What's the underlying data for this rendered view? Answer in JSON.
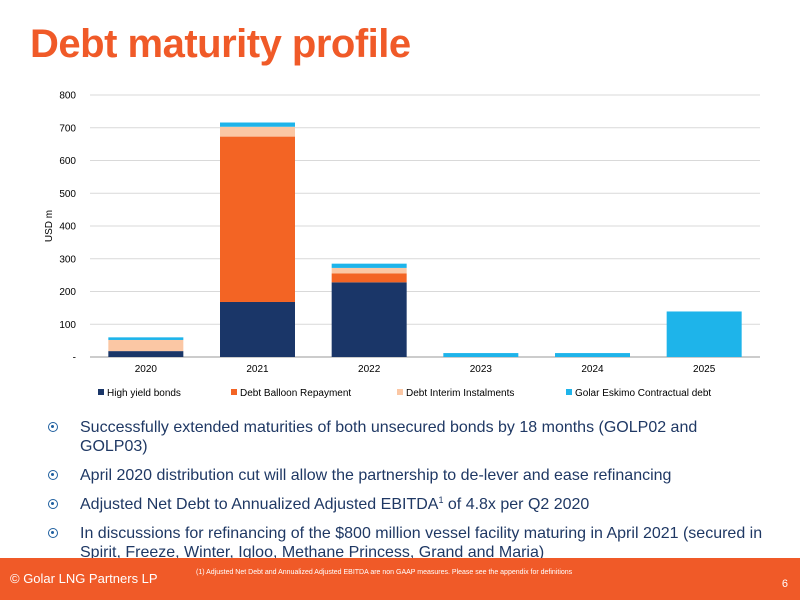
{
  "slide": {
    "title": "Debt maturity profile",
    "bullets": [
      {
        "text": "Successfully extended maturities of both unsecured bonds by 18 months (GOLP02 and GOLP03)"
      },
      {
        "text": "April 2020 distribution cut will allow the partnership to de-lever and ease refinancing"
      },
      {
        "text": "Adjusted Net Debt to Annualized Adjusted EBITDA",
        "sup": "1",
        "tail": " of 4.8x per Q2 2020"
      },
      {
        "text": "In discussions for refinancing of the $800 million vessel facility maturing in April 2021 (secured in Spirit, Freeze, Winter, Igloo, Methane Princess, Grand and Maria)"
      }
    ],
    "footer": {
      "left": "© Golar LNG Partners LP",
      "note": "(1)      Adjusted Net Debt and Annualized Adjusted EBITDA are non GAAP measures. Please see the appendix for definitions",
      "page": "6"
    }
  },
  "chart_data": {
    "type": "bar",
    "stacked": true,
    "categories": [
      "2020",
      "2021",
      "2022",
      "2023",
      "2024",
      "2025"
    ],
    "ylabel": "USD m",
    "ylim": [
      0,
      800
    ],
    "yticks": [
      0,
      100,
      200,
      300,
      400,
      500,
      600,
      700,
      800
    ],
    "ytick_labels": [
      "-",
      "100",
      "200",
      "300",
      "400",
      "500",
      "600",
      "700",
      "800"
    ],
    "grid": true,
    "legend_position": "bottom",
    "series": [
      {
        "name": "High yield bonds",
        "color": "#1a3668",
        "values": [
          18,
          168,
          228,
          0,
          0,
          0
        ]
      },
      {
        "name": "Debt Balloon Repayment",
        "color": "#f36424",
        "values": [
          0,
          505,
          27,
          0,
          0,
          0
        ]
      },
      {
        "name": "Debt Interim Instalments",
        "color": "#fbc7a4",
        "values": [
          34,
          30,
          17,
          0,
          0,
          0
        ]
      },
      {
        "name": "Golar Eskimo Contractual debt",
        "color": "#1eb4ea",
        "values": [
          8,
          13,
          13,
          12,
          12,
          139
        ]
      }
    ]
  }
}
